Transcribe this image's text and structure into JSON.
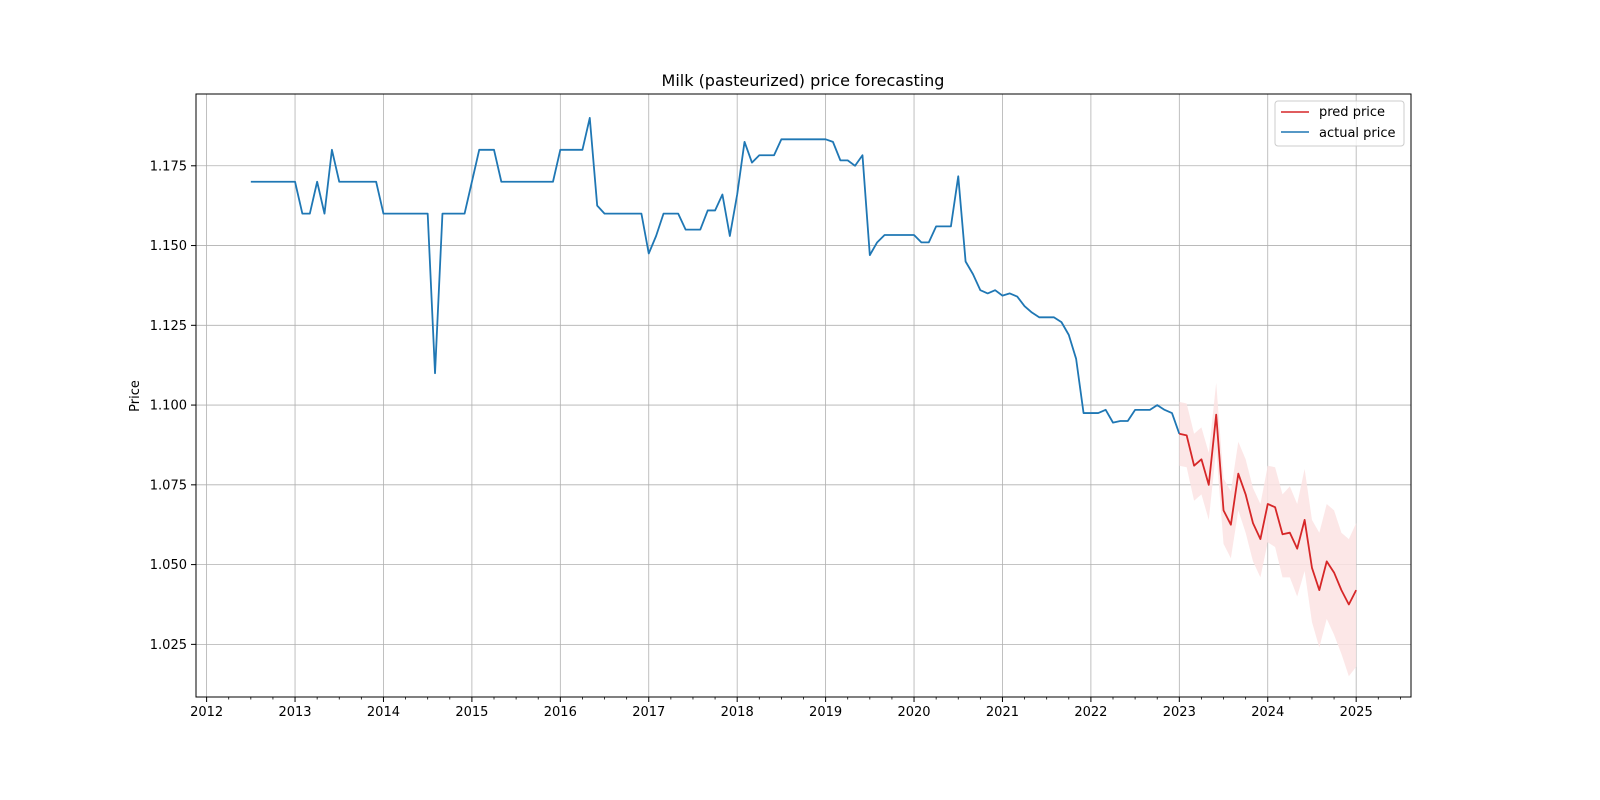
{
  "chart_data": {
    "type": "line",
    "title": "Milk (pasteurized) price forecasting",
    "xlabel": "",
    "ylabel": "Price",
    "xlim": [
      2011.88,
      2025.62
    ],
    "ylim": [
      1.0085,
      1.1975
    ],
    "x_ticks": [
      "2012",
      "2013",
      "2014",
      "2015",
      "2016",
      "2017",
      "2018",
      "2019",
      "2020",
      "2021",
      "2022",
      "2023",
      "2024",
      "2025"
    ],
    "y_ticks": [
      "1.025",
      "1.050",
      "1.075",
      "1.100",
      "1.125",
      "1.150",
      "1.175"
    ],
    "grid": true,
    "legend_position": "top-right",
    "legend": [
      "pred price",
      "actual price"
    ],
    "colors": {
      "pred": "#d62728",
      "actual": "#1f77b4",
      "band": "#fbe3e3",
      "grid": "#b0b0b0"
    },
    "series": [
      {
        "name": "actual price",
        "x": [
          2012.5,
          2012.583,
          2012.667,
          2012.75,
          2012.833,
          2012.917,
          2013.0,
          2013.083,
          2013.167,
          2013.25,
          2013.333,
          2013.417,
          2013.5,
          2013.583,
          2013.667,
          2013.75,
          2013.833,
          2013.917,
          2014.0,
          2014.083,
          2014.167,
          2014.25,
          2014.333,
          2014.417,
          2014.5,
          2014.583,
          2014.667,
          2014.75,
          2014.833,
          2014.917,
          2015.0,
          2015.083,
          2015.167,
          2015.25,
          2015.333,
          2015.417,
          2015.5,
          2015.583,
          2015.667,
          2015.75,
          2015.833,
          2015.917,
          2016.0,
          2016.083,
          2016.167,
          2016.25,
          2016.333,
          2016.417,
          2016.5,
          2016.583,
          2016.667,
          2016.75,
          2016.833,
          2016.917,
          2017.0,
          2017.083,
          2017.167,
          2017.25,
          2017.333,
          2017.417,
          2017.5,
          2017.583,
          2017.667,
          2017.75,
          2017.833,
          2017.917,
          2018.0,
          2018.083,
          2018.167,
          2018.25,
          2018.333,
          2018.417,
          2018.5,
          2018.583,
          2018.667,
          2018.75,
          2018.833,
          2018.917,
          2019.0,
          2019.083,
          2019.167,
          2019.25,
          2019.333,
          2019.417,
          2019.5,
          2019.583,
          2019.667,
          2019.75,
          2019.833,
          2019.917,
          2020.0,
          2020.083,
          2020.167,
          2020.25,
          2020.333,
          2020.417,
          2020.5,
          2020.583,
          2020.667,
          2020.75,
          2020.833,
          2020.917,
          2021.0,
          2021.083,
          2021.167,
          2021.25,
          2021.333,
          2021.417,
          2021.5,
          2021.583,
          2021.667,
          2021.75,
          2021.833,
          2021.917,
          2022.0,
          2022.083,
          2022.167,
          2022.25,
          2022.333,
          2022.417,
          2022.5,
          2022.583,
          2022.667,
          2022.75,
          2022.833,
          2022.917,
          2023.0
        ],
        "values": [
          1.17,
          1.17,
          1.17,
          1.17,
          1.17,
          1.17,
          1.17,
          1.16,
          1.16,
          1.17,
          1.16,
          1.18,
          1.17,
          1.17,
          1.17,
          1.17,
          1.17,
          1.17,
          1.16,
          1.16,
          1.16,
          1.16,
          1.16,
          1.16,
          1.16,
          1.11,
          1.16,
          1.16,
          1.16,
          1.16,
          1.17,
          1.18,
          1.18,
          1.18,
          1.17,
          1.17,
          1.17,
          1.17,
          1.17,
          1.17,
          1.17,
          1.17,
          1.18,
          1.18,
          1.18,
          1.18,
          1.19,
          1.1625,
          1.16,
          1.16,
          1.16,
          1.16,
          1.16,
          1.16,
          1.1475,
          1.153,
          1.16,
          1.16,
          1.16,
          1.155,
          1.155,
          1.155,
          1.161,
          1.161,
          1.166,
          1.153,
          1.166,
          1.1825,
          1.176,
          1.1783,
          1.1783,
          1.1783,
          1.1833,
          1.1833,
          1.1833,
          1.1833,
          1.1833,
          1.1833,
          1.1833,
          1.1825,
          1.1767,
          1.1767,
          1.175,
          1.1783,
          1.147,
          1.151,
          1.1533,
          1.1533,
          1.1533,
          1.1533,
          1.1533,
          1.151,
          1.151,
          1.156,
          1.156,
          1.156,
          1.1717,
          1.145,
          1.141,
          1.136,
          1.135,
          1.136,
          1.1343,
          1.135,
          1.134,
          1.131,
          1.129,
          1.1275,
          1.1275,
          1.1275,
          1.126,
          1.122,
          1.1145,
          1.0975,
          1.0975,
          1.0975,
          1.0985,
          1.0945,
          1.095,
          1.095,
          1.0985,
          1.0985,
          1.0985,
          1.1,
          1.0985,
          1.0975,
          1.091
        ]
      },
      {
        "name": "pred price",
        "x": [
          2023.0,
          2023.083,
          2023.167,
          2023.25,
          2023.333,
          2023.417,
          2023.5,
          2023.583,
          2023.667,
          2023.75,
          2023.833,
          2023.917,
          2024.0,
          2024.083,
          2024.167,
          2024.25,
          2024.333,
          2024.417,
          2024.5,
          2024.583,
          2024.667,
          2024.75,
          2024.833,
          2024.917,
          2025.0
        ],
        "values": [
          1.091,
          1.0905,
          1.081,
          1.083,
          1.075,
          1.097,
          1.067,
          1.0625,
          1.0785,
          1.072,
          1.063,
          1.058,
          1.069,
          1.068,
          1.0595,
          1.06,
          1.055,
          1.064,
          1.049,
          1.042,
          1.051,
          1.0475,
          1.042,
          1.0375,
          1.042
        ],
        "lower": [
          1.081,
          1.0805,
          1.07,
          1.072,
          1.064,
          1.086,
          1.0565,
          1.052,
          1.067,
          1.06,
          1.051,
          1.046,
          1.057,
          1.0555,
          1.046,
          1.046,
          1.04,
          1.048,
          1.032,
          1.024,
          1.033,
          1.028,
          1.022,
          1.015,
          1.018
        ],
        "upper": [
          1.101,
          1.1005,
          1.091,
          1.093,
          1.085,
          1.107,
          1.077,
          1.073,
          1.0885,
          1.083,
          1.074,
          1.069,
          1.081,
          1.0805,
          1.072,
          1.0745,
          1.069,
          1.08,
          1.064,
          1.06,
          1.069,
          1.067,
          1.06,
          1.058,
          1.063
        ]
      }
    ]
  }
}
